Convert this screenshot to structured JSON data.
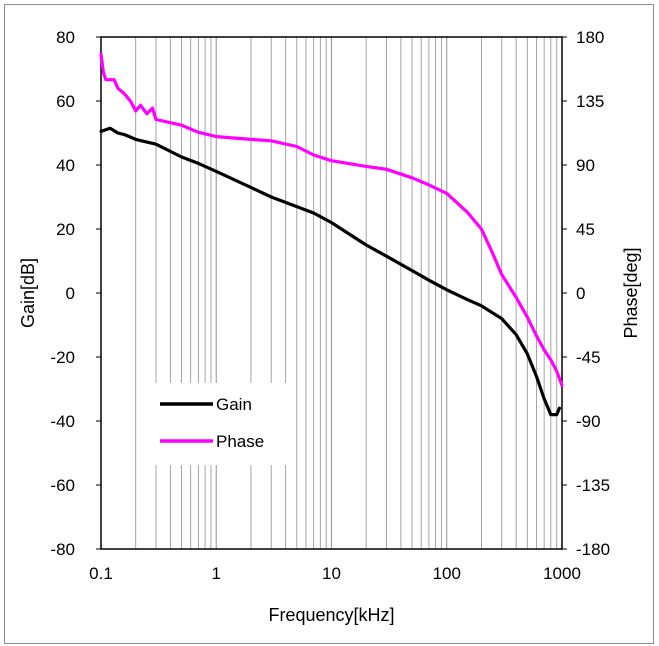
{
  "chart_data": {
    "type": "line",
    "xscale": "log",
    "xlabel": "Frequency[kHz]",
    "ylabel": "Gain[dB]",
    "y2label": "Phase[deg]",
    "xlim": [
      0.1,
      1000
    ],
    "ylim": [
      -80,
      80
    ],
    "y2lim": [
      -180,
      180
    ],
    "xticks": [
      "0.1",
      "1",
      "10",
      "100",
      "1000"
    ],
    "yticks": [
      "80",
      "60",
      "40",
      "20",
      "0",
      "-20",
      "-40",
      "-60",
      "-80"
    ],
    "y2ticks": [
      "180",
      "135",
      "90",
      "45",
      "0",
      "-45",
      "-90",
      "-135",
      "-180"
    ],
    "grid": "vertical minor log gridlines",
    "legend": "lower-left inside plot",
    "series": [
      {
        "name": "Gain",
        "axis": "left",
        "color": "#000000",
        "points": [
          [
            0.1,
            50.5
          ],
          [
            0.12,
            51.5
          ],
          [
            0.14,
            50
          ],
          [
            0.16,
            49.5
          ],
          [
            0.2,
            48
          ],
          [
            0.3,
            46.5
          ],
          [
            0.5,
            42.5
          ],
          [
            0.7,
            40.5
          ],
          [
            1,
            38
          ],
          [
            2,
            33
          ],
          [
            3,
            30
          ],
          [
            5,
            27
          ],
          [
            7,
            25
          ],
          [
            10,
            22
          ],
          [
            20,
            15
          ],
          [
            30,
            11.5
          ],
          [
            50,
            7
          ],
          [
            70,
            4
          ],
          [
            100,
            1
          ],
          [
            150,
            -2
          ],
          [
            200,
            -4
          ],
          [
            300,
            -8
          ],
          [
            400,
            -13
          ],
          [
            500,
            -19
          ],
          [
            600,
            -26
          ],
          [
            700,
            -33
          ],
          [
            800,
            -38
          ],
          [
            900,
            -38
          ],
          [
            950,
            -36
          ]
        ]
      },
      {
        "name": "Phase",
        "axis": "right",
        "color": "#ff00ff",
        "points": [
          [
            0.1,
            168
          ],
          [
            0.105,
            155
          ],
          [
            0.11,
            150
          ],
          [
            0.13,
            150
          ],
          [
            0.14,
            144
          ],
          [
            0.16,
            140
          ],
          [
            0.18,
            135
          ],
          [
            0.2,
            128
          ],
          [
            0.22,
            132
          ],
          [
            0.25,
            126
          ],
          [
            0.28,
            130
          ],
          [
            0.3,
            122
          ],
          [
            0.5,
            118
          ],
          [
            0.7,
            113
          ],
          [
            1,
            110
          ],
          [
            2,
            108
          ],
          [
            3,
            107
          ],
          [
            5,
            103
          ],
          [
            7,
            97
          ],
          [
            10,
            93
          ],
          [
            20,
            89
          ],
          [
            30,
            87
          ],
          [
            50,
            81
          ],
          [
            70,
            76
          ],
          [
            100,
            70
          ],
          [
            150,
            57
          ],
          [
            200,
            45
          ],
          [
            250,
            28
          ],
          [
            300,
            13
          ],
          [
            400,
            -3
          ],
          [
            500,
            -17
          ],
          [
            600,
            -30
          ],
          [
            700,
            -40
          ],
          [
            800,
            -47
          ],
          [
            900,
            -55
          ],
          [
            1000,
            -65
          ]
        ]
      }
    ]
  }
}
